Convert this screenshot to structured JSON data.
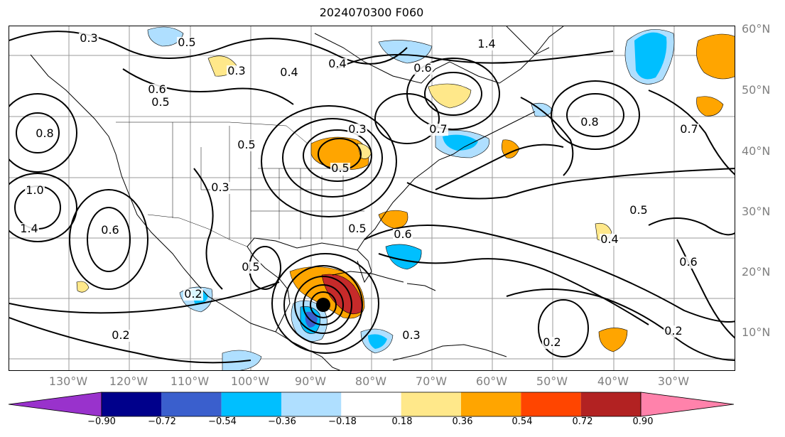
{
  "title": "2024070300 F060",
  "map": {
    "lat_labels": [
      "60°N",
      "50°N",
      "40°N",
      "30°N",
      "20°N",
      "10°N"
    ],
    "lon_labels": [
      "130°W",
      "120°W",
      "110°W",
      "100°W",
      "90°W",
      "80°W",
      "70°W",
      "60°W",
      "50°W",
      "40°W",
      "30°W"
    ],
    "contour_labels": [
      "0.3",
      "0.5",
      "1.4",
      "0.6",
      "0.4",
      "0.3",
      "0.8",
      "0.6",
      "0.5",
      "0.4",
      "0.5",
      "1.0",
      "1.4",
      "0.3",
      "0.6",
      "0.2",
      "0.2",
      "0.5",
      "0.5",
      "0.3",
      "0.7",
      "0.6",
      "0.5",
      "0.3",
      "0.2",
      "0.2",
      "0.4",
      "0.5",
      "0.6",
      "0.7",
      "0.8"
    ]
  },
  "colorbar": {
    "ticks": [
      "−0.90",
      "−0.72",
      "−0.54",
      "−0.36",
      "−0.18",
      "0.18",
      "0.36",
      "0.54",
      "0.72",
      "0.90"
    ],
    "colors": [
      "#9932cc",
      "#00008b",
      "#3a5fcd",
      "#00bfff",
      "#afdfff",
      "#ffffff",
      "#ffe88a",
      "#ffa500",
      "#ff4500",
      "#b22222",
      "#ff82ab"
    ]
  }
}
